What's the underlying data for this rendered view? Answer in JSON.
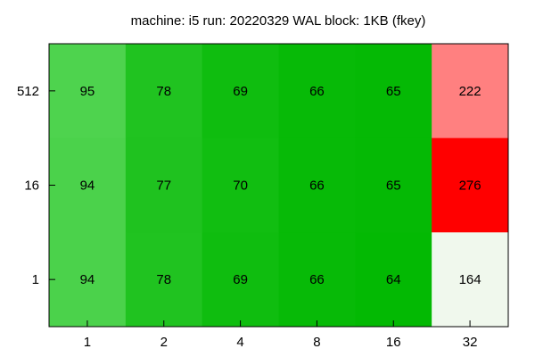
{
  "chart_data": {
    "type": "heatmap",
    "title": "machine: i5 run: 20220329 WAL block: 1KB (fkey)",
    "xlabel": "",
    "ylabel": "",
    "x_categories": [
      "1",
      "2",
      "4",
      "8",
      "16",
      "32"
    ],
    "y_categories": [
      "512",
      "16",
      "1"
    ],
    "values": [
      [
        95,
        78,
        69,
        66,
        65,
        222
      ],
      [
        94,
        77,
        70,
        66,
        65,
        276
      ],
      [
        94,
        78,
        69,
        66,
        64,
        164
      ]
    ],
    "cell_colors": [
      [
        "#4ed34e",
        "#20c320",
        "#0fbd0f",
        "#07ba07",
        "#05b905",
        "#ff8080"
      ],
      [
        "#4bd24b",
        "#1fc21f",
        "#11be11",
        "#07ba07",
        "#05b905",
        "#ff0000"
      ],
      [
        "#4bd24b",
        "#20c320",
        "#0fbd0f",
        "#07ba07",
        "#03b903",
        "#f0f8ed"
      ]
    ],
    "grid": false,
    "legend": "none"
  }
}
